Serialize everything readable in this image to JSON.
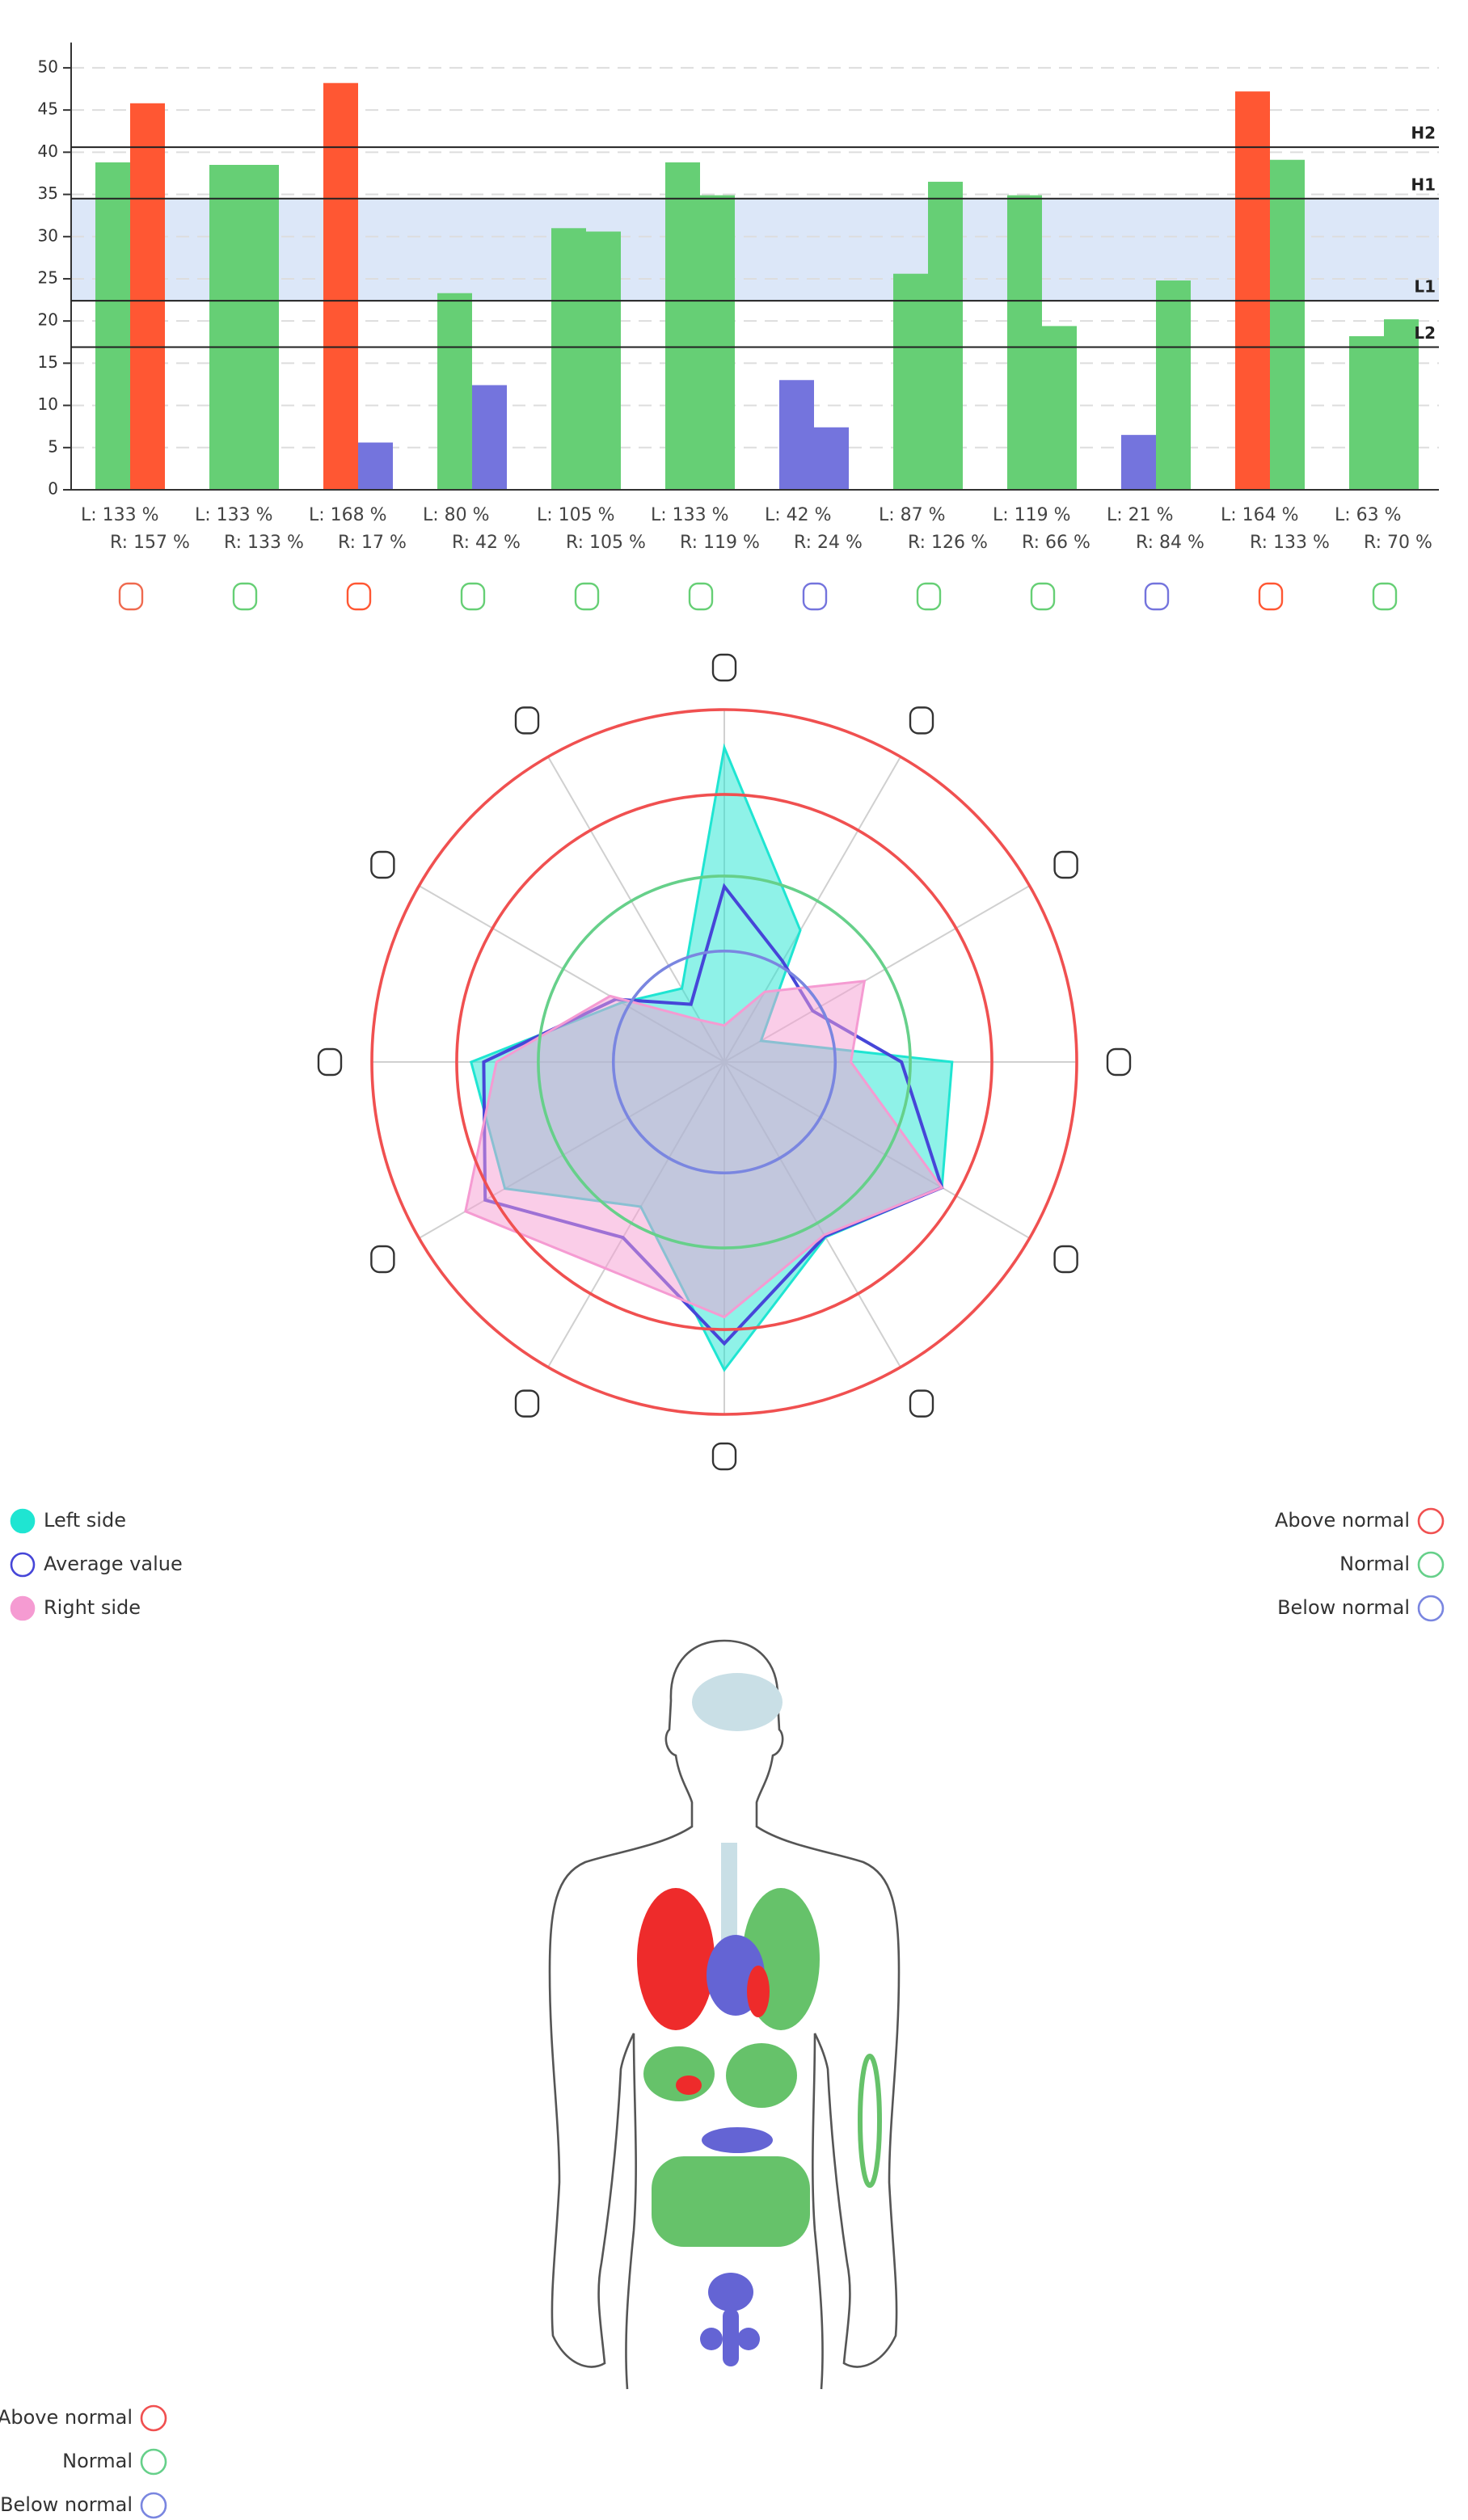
{
  "chart_data": [
    {
      "type": "bar",
      "categories": [
        null,
        null,
        null,
        null,
        null,
        null,
        null,
        null,
        null,
        null,
        null,
        null
      ],
      "series": [
        {
          "values": [
            38.8,
            38.5,
            48.2,
            23.3,
            31,
            38.8,
            13,
            25.6,
            34.9,
            6.5,
            47.2,
            18.2
          ],
          "colors": [
            "#66cf75",
            "#66cf75",
            "#ff5733",
            "#66cf75",
            "#66cf75",
            "#66cf75",
            "#7474dd",
            "#66cf75",
            "#66cf75",
            "#7474dd",
            "#ff5733",
            "#66cf75"
          ]
        },
        {
          "values": [
            45.8,
            38.5,
            5.6,
            12.4,
            30.6,
            34.9,
            7.4,
            36.5,
            19.4,
            24.8,
            39.1,
            20.2
          ],
          "colors": [
            "#ff5733",
            "#66cf75",
            "#7474dd",
            "#7474dd",
            "#66cf75",
            "#66cf75",
            "#7474dd",
            "#66cf75",
            "#66cf75",
            "#66cf75",
            "#66cf75",
            "#66cf75"
          ]
        }
      ],
      "left_labels": [
        "L: 133 %",
        "L: 133 %",
        "L: 168 %",
        "L: 80 %",
        "L: 105 %",
        "L: 133 %",
        "L: 42 %",
        "L: 87 %",
        "L: 119 %",
        "L: 21 %",
        "L: 164 %",
        "L: 63 %"
      ],
      "right_labels": [
        "R: 157 %",
        "R: 133 %",
        "R: 17 %",
        "R: 42 %",
        "R: 105 %",
        "R: 119 %",
        "R: 24 %",
        "R: 126 %",
        "R: 66 %",
        "R: 84 %",
        "R: 133 %",
        "R: 70 %"
      ],
      "icon_colors": [
        "#ef6a4f",
        "#66cf75",
        "#ff5733",
        "#66cf75",
        "#66cf75",
        "#66cf75",
        "#7474dd",
        "#66cf75",
        "#66cf75",
        "#7474dd",
        "#ff5733",
        "#66cf75"
      ],
      "ylim": [
        0,
        53
      ],
      "yticks": [
        0,
        5,
        10,
        15,
        20,
        25,
        30,
        35,
        40,
        45,
        50
      ],
      "grid": true,
      "reference_lines": [
        {
          "label": "H2",
          "value": 40.6
        },
        {
          "label": "H1",
          "value": 34.5
        },
        {
          "label": "L1",
          "value": 22.4
        },
        {
          "label": "L2",
          "value": 16.9
        }
      ],
      "band_color": "#dce7f8"
    },
    {
      "type": "radar",
      "categories": [
        null,
        null,
        null,
        null,
        null,
        null,
        null,
        null,
        null,
        null,
        null,
        null
      ],
      "rlim": [
        0,
        54
      ],
      "rings": [
        {
          "value": 54,
          "color": "#f05050"
        },
        {
          "value": 41,
          "color": "#f05050"
        },
        {
          "value": 28.5,
          "color": "#66d08a"
        },
        {
          "value": 17,
          "color": "#7a86e0"
        }
      ],
      "series": [
        {
          "name": "Left side",
          "color": "#1fe5d2",
          "filled": true,
          "values": [
            48.2,
            23.3,
            6.5,
            34.9,
            38.5,
            31,
            47.2,
            25.6,
            38.8,
            38.8,
            18.2,
            13
          ]
        },
        {
          "name": "Average value",
          "color": "#4646d8",
          "filled": false,
          "values": [
            26.9,
            17.85,
            15.65,
            27.15,
            38.5,
            30.8,
            43.15,
            31.05,
            42.3,
            36.85,
            19.2,
            10.2
          ]
        },
        {
          "name": "Right side",
          "color": "#f59bd2",
          "filled": true,
          "values": [
            5.6,
            12.4,
            24.8,
            19.4,
            38.5,
            30.6,
            39.1,
            36.5,
            45.8,
            34.9,
            20.2,
            7.4
          ]
        }
      ],
      "status_legend": [
        {
          "name": "Above normal",
          "color": "#f05050"
        },
        {
          "name": "Normal",
          "color": "#66d08a"
        },
        {
          "name": "Below normal",
          "color": "#7a86e0"
        }
      ]
    }
  ],
  "body_legend": [
    {
      "name": "Above normal",
      "color": "#f05050"
    },
    {
      "name": "Normal",
      "color": "#66d08a"
    },
    {
      "name": "Below normal",
      "color": "#7a86e0"
    }
  ]
}
